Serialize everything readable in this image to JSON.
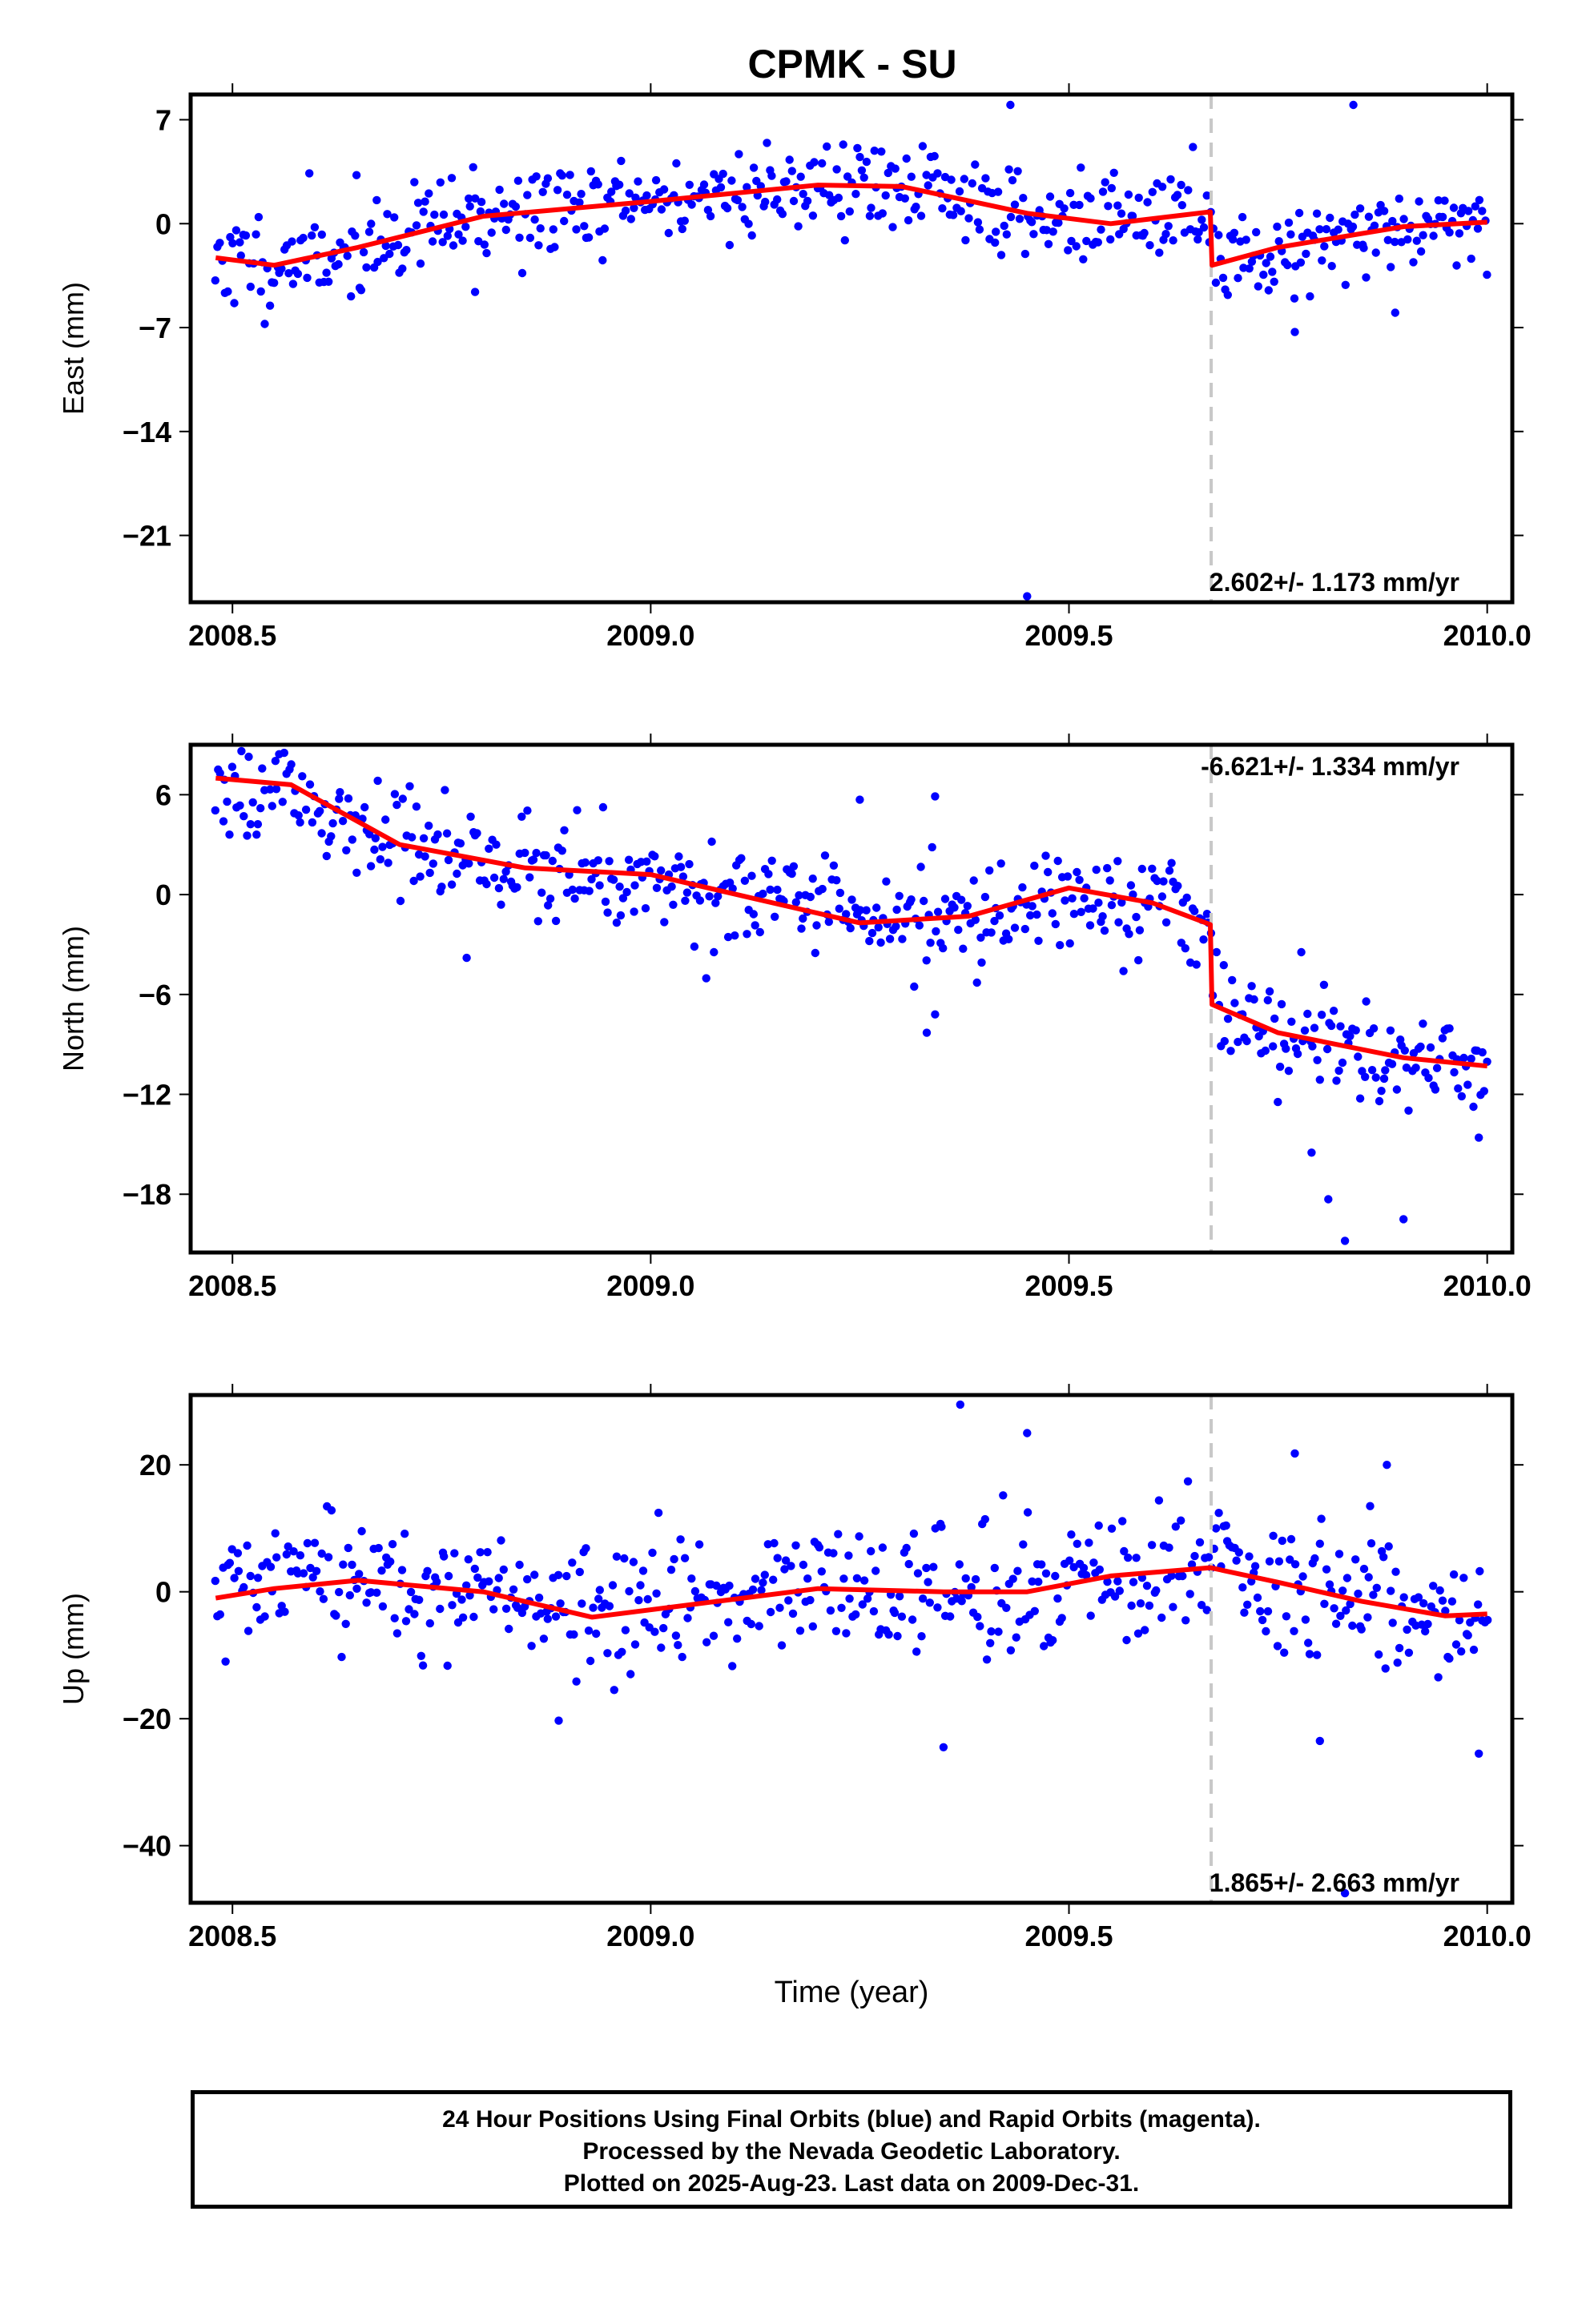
{
  "page_title": "CPMK - SU",
  "footer": {
    "line1": "24 Hour Positions Using Final Orbits (blue) and Rapid Orbits (magenta).",
    "line2": "Processed by the Nevada Geodetic Laboratory.",
    "line3": "Plotted on 2025-Aug-23. Last data on 2009-Dec-31."
  },
  "colors": {
    "points": "#0000ff",
    "model": "#ff0000",
    "event_line": "#c8c8c8"
  },
  "event_epoch": 2009.67,
  "chart_data": [
    {
      "type": "scatter",
      "ylabel": "East (mm)",
      "xlabel": "",
      "xlim": [
        2008.45,
        2010.03
      ],
      "ylim": [
        -25.5,
        8.7
      ],
      "xticks": [
        "2008.5",
        "2009.0",
        "2009.5",
        "2010.0"
      ],
      "xtick_values": [
        2008.5,
        2009.0,
        2009.5,
        2010.0
      ],
      "yticks": [
        "7",
        "0",
        "-7",
        "-14",
        "-21"
      ],
      "ytick_values": [
        7,
        0,
        -7,
        -14,
        -21
      ],
      "rate_label": "2.602+/- 1.173 mm/yr",
      "rate_position": "bottom-right",
      "model": {
        "x": [
          2008.48,
          2008.55,
          2008.65,
          2008.8,
          2009.0,
          2009.2,
          2009.3,
          2009.45,
          2009.55,
          2009.669,
          2009.671,
          2009.75,
          2009.9,
          2010.0
        ],
        "y": [
          -2.3,
          -2.8,
          -1.6,
          0.5,
          1.5,
          2.6,
          2.5,
          0.7,
          0.0,
          0.8,
          -2.8,
          -1.6,
          -0.2,
          0.1
        ]
      },
      "scatter_params": {
        "seed": 11,
        "noise": 1.6,
        "outliers": [
          [
            2009.45,
            -25.1
          ],
          [
            2009.43,
            8.0
          ],
          [
            2009.84,
            8.0
          ],
          [
            2009.77,
            -7.3
          ],
          [
            2008.79,
            -4.6
          ],
          [
            2009.89,
            -6.0
          ]
        ]
      }
    },
    {
      "type": "scatter",
      "ylabel": "North (mm)",
      "xlabel": "",
      "xlim": [
        2008.45,
        2010.03
      ],
      "ylim": [
        -21.5,
        9.0
      ],
      "xticks": [
        "2008.5",
        "2009.0",
        "2009.5",
        "2010.0"
      ],
      "xtick_values": [
        2008.5,
        2009.0,
        2009.5,
        2010.0
      ],
      "yticks": [
        "6",
        "0",
        "-6",
        "-12",
        "-18"
      ],
      "ytick_values": [
        6,
        0,
        -6,
        -12,
        -18
      ],
      "rate_label": "-6.621+/- 1.334 mm/yr",
      "rate_position": "top-right",
      "model": {
        "x": [
          2008.48,
          2008.57,
          2008.7,
          2008.85,
          2009.0,
          2009.12,
          2009.25,
          2009.38,
          2009.5,
          2009.6,
          2009.669,
          2009.671,
          2009.75,
          2009.9,
          2010.0
        ],
        "y": [
          7.0,
          6.6,
          3.0,
          1.6,
          1.2,
          -0.2,
          -1.7,
          -1.3,
          0.4,
          -0.5,
          -1.8,
          -6.6,
          -8.3,
          -9.8,
          -10.3
        ]
      },
      "scatter_params": {
        "seed": 23,
        "noise": 1.5,
        "outliers": [
          [
            2009.33,
            -8.3
          ],
          [
            2009.34,
            -7.2
          ],
          [
            2009.83,
            -20.8
          ],
          [
            2009.9,
            -19.5
          ],
          [
            2009.81,
            -18.3
          ],
          [
            2009.79,
            -15.5
          ],
          [
            2009.99,
            -14.6
          ],
          [
            2008.78,
            -3.8
          ],
          [
            2009.25,
            5.7
          ],
          [
            2009.34,
            5.9
          ]
        ]
      }
    },
    {
      "type": "scatter",
      "ylabel": "Up (mm)",
      "xlabel": "Time (year)",
      "xlim": [
        2008.45,
        2010.03
      ],
      "ylim": [
        -49,
        31
      ],
      "xticks": [
        "2008.5",
        "2009.0",
        "2009.5",
        "2010.0"
      ],
      "xtick_values": [
        2008.5,
        2009.0,
        2009.5,
        2010.0
      ],
      "yticks": [
        "20",
        "0",
        "-20",
        "-40"
      ],
      "ytick_values": [
        20,
        0,
        -20,
        -40
      ],
      "rate_label": "1.865+/- 2.663 mm/yr",
      "rate_position": "bottom-right",
      "model": {
        "x": [
          2008.48,
          2008.55,
          2008.65,
          2008.8,
          2008.93,
          2009.05,
          2009.2,
          2009.35,
          2009.45,
          2009.55,
          2009.669,
          2009.75,
          2009.85,
          2009.95,
          2010.0
        ],
        "y": [
          -1.0,
          0.5,
          1.8,
          0.0,
          -4.0,
          -2.0,
          0.5,
          0.0,
          0.0,
          2.5,
          3.8,
          1.5,
          -1.5,
          -3.8,
          -3.5
        ]
      },
      "scatter_params": {
        "seed": 37,
        "noise": 5.0,
        "outliers": [
          [
            2009.37,
            29.5
          ],
          [
            2009.45,
            25.0
          ],
          [
            2009.77,
            21.8
          ],
          [
            2009.88,
            20.0
          ],
          [
            2009.35,
            -24.5
          ],
          [
            2009.99,
            -25.5
          ],
          [
            2009.83,
            -47.5
          ],
          [
            2008.89,
            -20.3
          ],
          [
            2009.8,
            -23.5
          ],
          [
            2009.86,
            13.5
          ]
        ]
      }
    }
  ]
}
